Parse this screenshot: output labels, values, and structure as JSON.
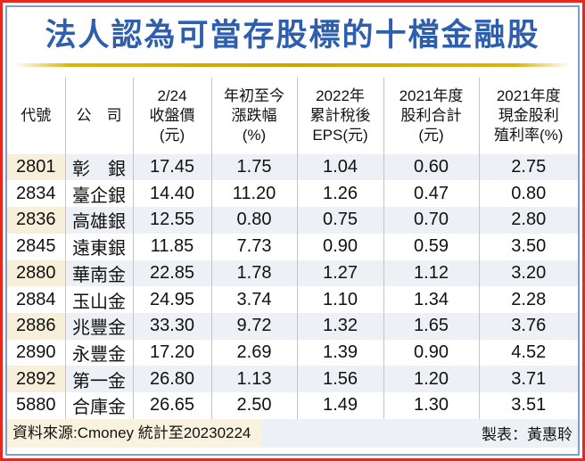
{
  "title": "法人認為可當存股標的十檔金融股",
  "colors": {
    "title_blue": "#2e5fae",
    "outer_border_red": "#e8271e",
    "inner_border_blue": "#7f9ecb",
    "gold_divider": "#cfa400",
    "stripe_gray": "#edf0f4",
    "stripe_cream": "#f8efdb",
    "footer_cream": "#f9f2de"
  },
  "chart_data": {
    "type": "table",
    "title": "法人認為可當存股標的十檔金融股",
    "columns": [
      {
        "id": "code",
        "lines": [
          "代號"
        ],
        "label": "代號"
      },
      {
        "id": "company",
        "lines": [
          "公　司"
        ],
        "label": "公　司"
      },
      {
        "id": "close",
        "lines": [
          "2/24",
          "收盤價",
          "(元)"
        ],
        "label": "2/24收盤價(元)"
      },
      {
        "id": "ytd-change",
        "lines": [
          "年初至今",
          "漲跌幅",
          "(%)"
        ],
        "label": "年初至今漲跌幅(%)"
      },
      {
        "id": "eps",
        "lines": [
          "2022年",
          "累計稅後",
          "EPS(元)"
        ],
        "label": "2022年累計稅後EPS(元)"
      },
      {
        "id": "dividend",
        "lines": [
          "2021年度",
          "股利合計",
          "(元)"
        ],
        "label": "2021年度股利合計(元)"
      },
      {
        "id": "cash-yield",
        "lines": [
          "2021年度",
          "現金股利",
          "殖利率(%)"
        ],
        "label": "2021年度現金股利殖利率(%)"
      }
    ],
    "rows": [
      [
        "2801",
        "彰　銀",
        "17.45",
        "1.75",
        "1.04",
        "0.60",
        "2.75"
      ],
      [
        "2834",
        "臺企銀",
        "14.40",
        "11.20",
        "1.26",
        "0.47",
        "0.80"
      ],
      [
        "2836",
        "高雄銀",
        "12.55",
        "0.80",
        "0.75",
        "0.70",
        "2.80"
      ],
      [
        "2845",
        "遠東銀",
        "11.85",
        "7.73",
        "0.90",
        "0.59",
        "3.50"
      ],
      [
        "2880",
        "華南金",
        "22.85",
        "1.78",
        "1.27",
        "1.12",
        "3.20"
      ],
      [
        "2884",
        "玉山金",
        "24.95",
        "3.74",
        "1.10",
        "1.34",
        "2.28"
      ],
      [
        "2886",
        "兆豐金",
        "33.30",
        "9.72",
        "1.32",
        "1.65",
        "3.76"
      ],
      [
        "2890",
        "永豐金",
        "17.20",
        "2.69",
        "1.39",
        "0.90",
        "4.52"
      ],
      [
        "2892",
        "第一金",
        "26.80",
        "1.13",
        "1.56",
        "1.20",
        "3.71"
      ],
      [
        "5880",
        "合庫金",
        "26.65",
        "2.50",
        "1.49",
        "1.30",
        "3.51"
      ]
    ]
  },
  "footer": {
    "source": "資料來源:Cmoney 統計至20230224",
    "credit": "製表：黃惠聆"
  }
}
